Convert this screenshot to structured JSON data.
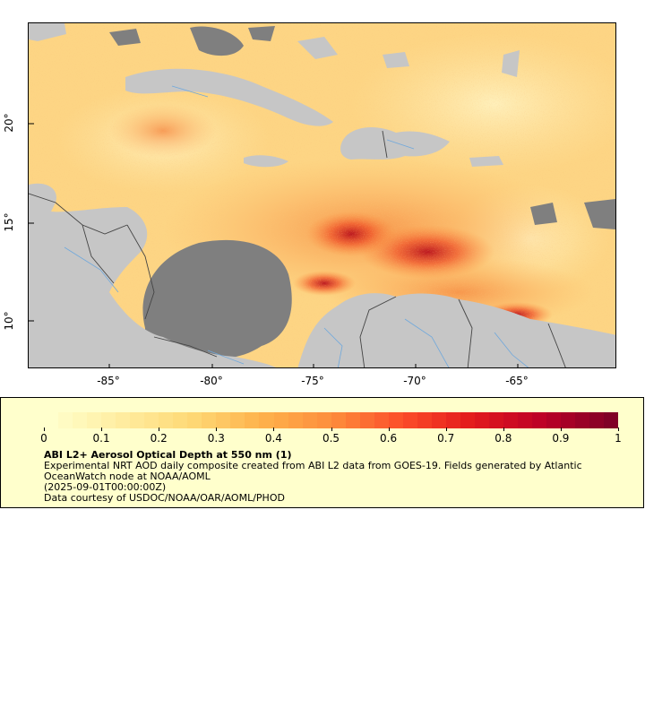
{
  "map": {
    "lon_labels": [
      "-85°",
      "-80°",
      "-75°",
      "-70°",
      "-65°"
    ],
    "lat_labels": [
      "20°",
      "15°",
      "10°"
    ],
    "extent": {
      "lon_min": -88.8,
      "lon_max": -60.0,
      "lat_min": 8.0,
      "lat_max": 24.8
    },
    "colors": {
      "land": "#c6c6c6",
      "no_data": "#7f7f7f",
      "rivers": "#6fa8dc",
      "borders": "#555555"
    }
  },
  "legend": {
    "tick_labels": [
      "0",
      "0.1",
      "0.2",
      "0.3",
      "0.4",
      "0.5",
      "0.6",
      "0.7",
      "0.8",
      "0.9",
      "1"
    ],
    "range": [
      0,
      1
    ],
    "colors": [
      "#ffffcc",
      "#ffeda0",
      "#fed976",
      "#feb24c",
      "#fd8d3c",
      "#fc4e2a",
      "#e31a1c",
      "#bd0026",
      "#800026"
    ],
    "title": "ABI L2+ Aerosol Optical Depth at 550 nm (1)",
    "description": "Experimental NRT AOD daily composite created from ABI L2 data from GOES-19. Fields generated by Atlantic OceanWatch node at NOAA/AOML",
    "time": "(2025-09-01T00:00:00Z)",
    "credit": "Data courtesy of USDOC/NOAA/OAR/AOML/PHOD"
  }
}
